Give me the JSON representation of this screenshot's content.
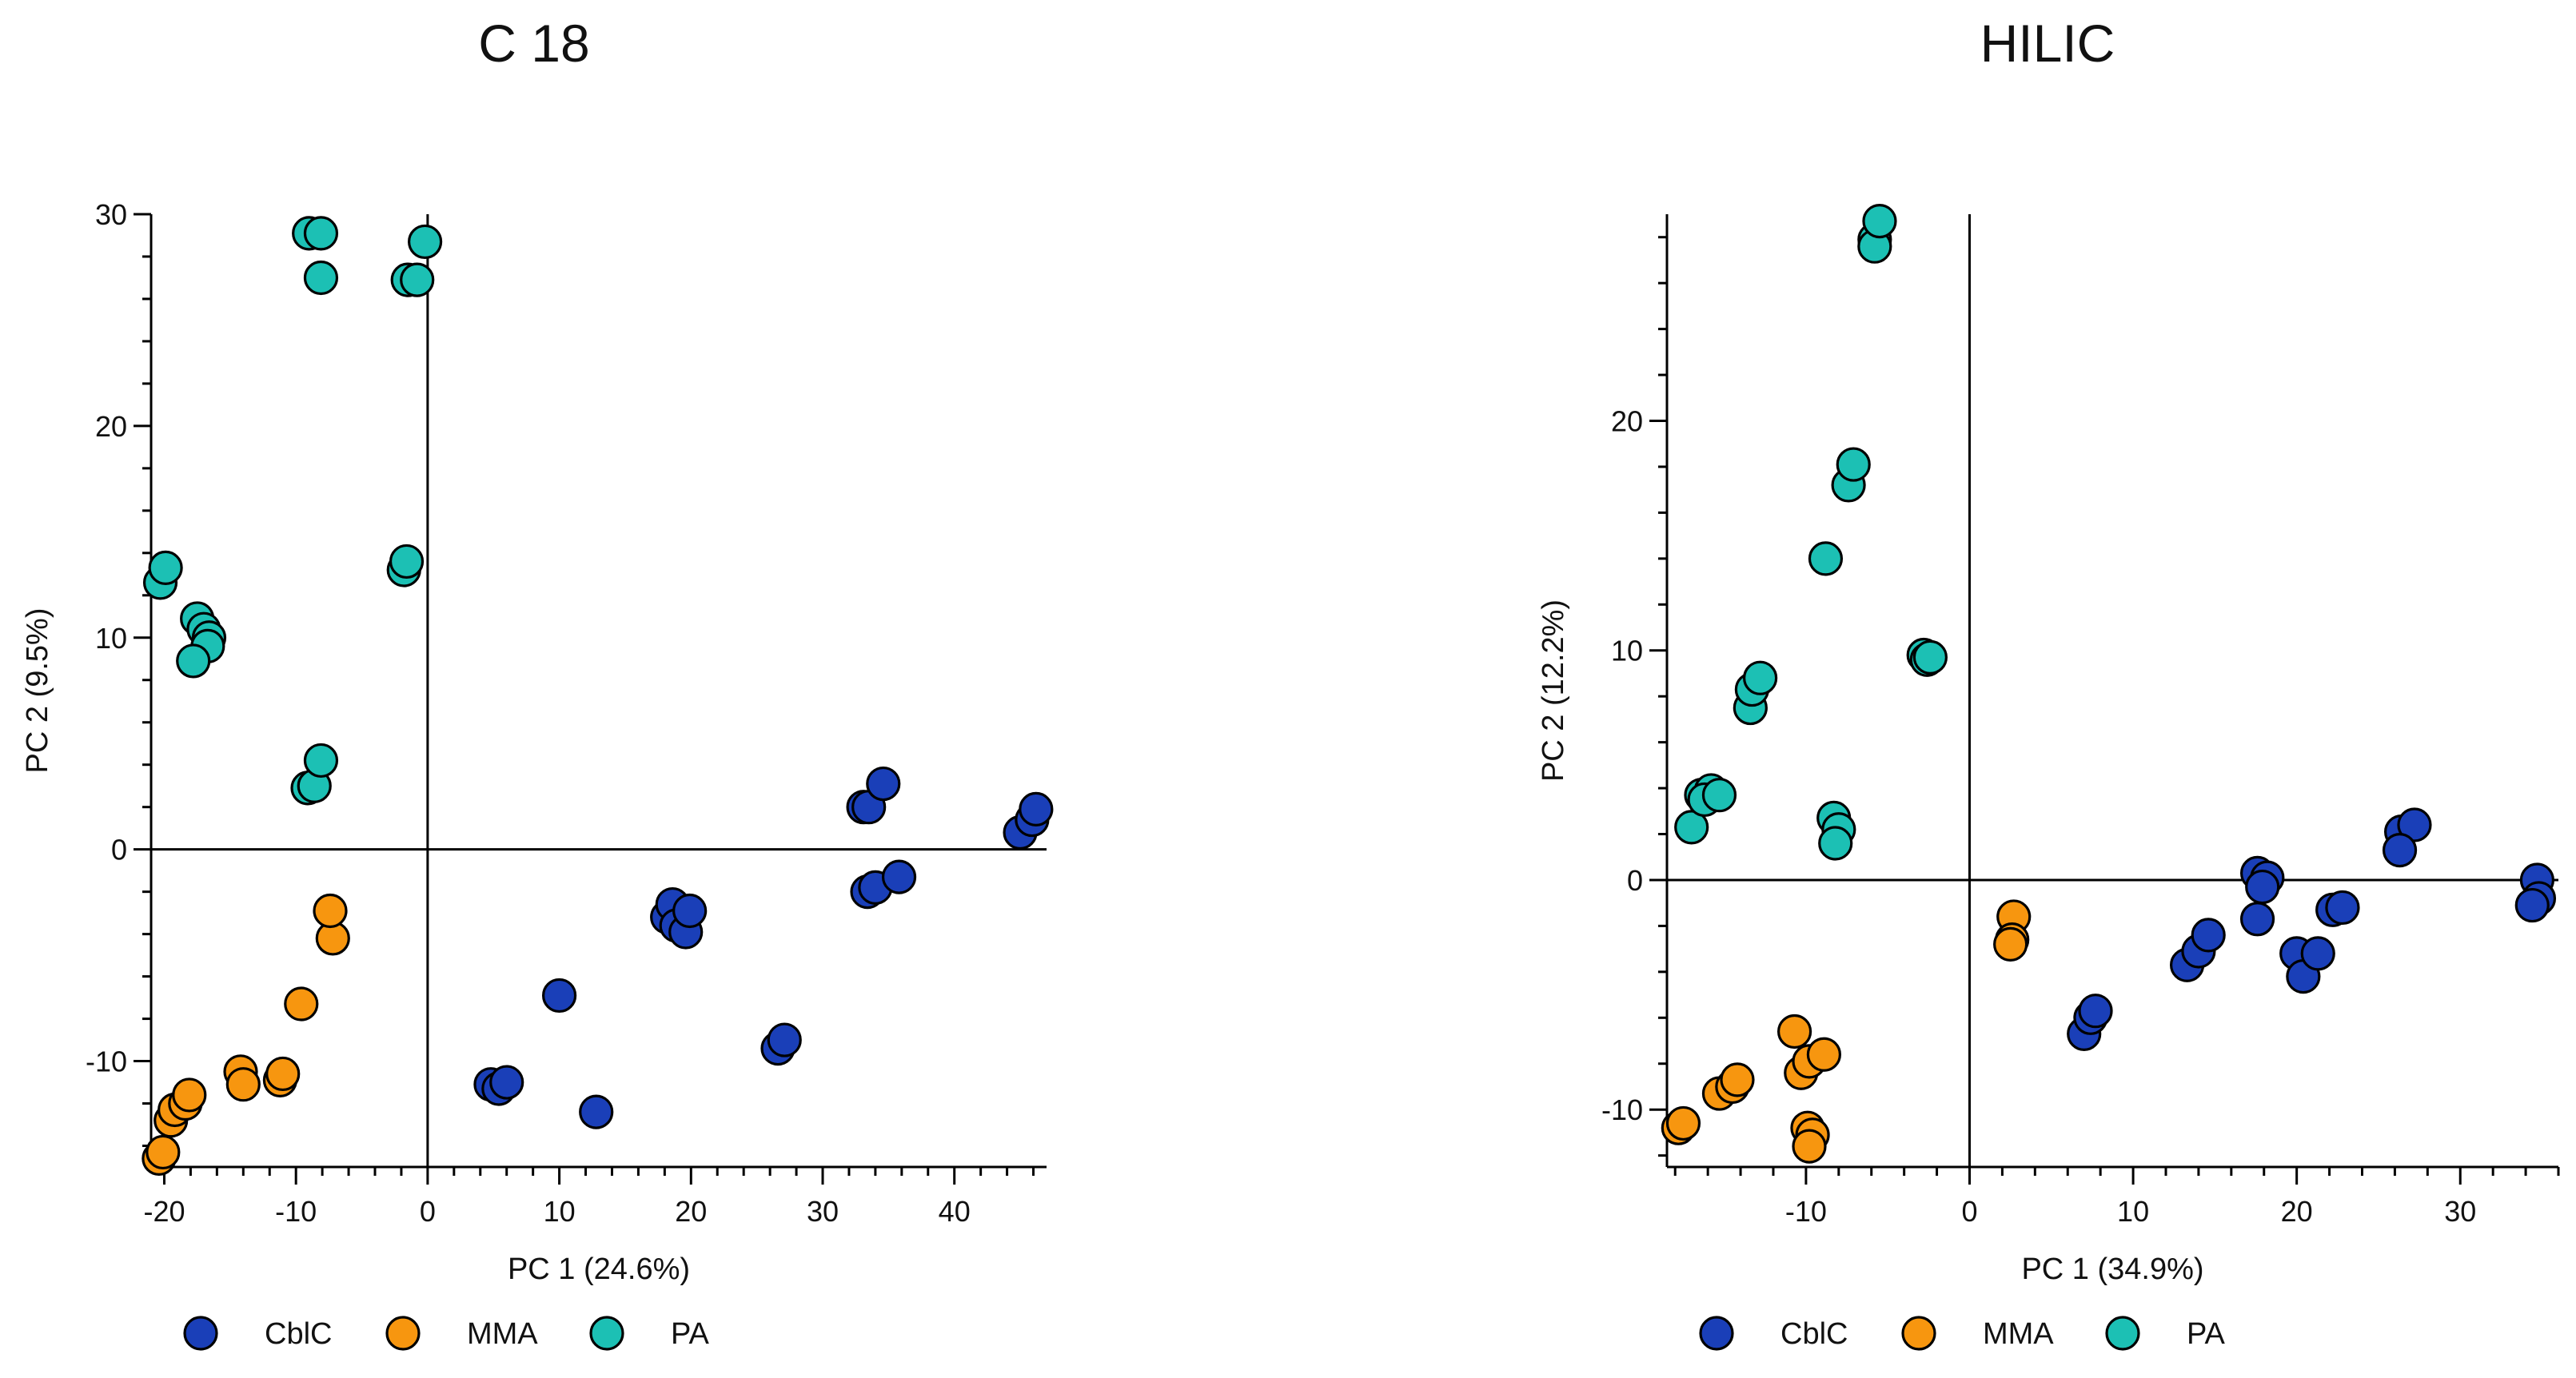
{
  "colors": {
    "CblC": "#1a3fb8",
    "MMA": "#f7960f",
    "PA": "#1cc0b4"
  },
  "chart_data": [
    {
      "type": "scatter",
      "title": "C 18",
      "xlabel": "PC 1 (24.6%)",
      "ylabel": "PC 2 (9.5%)",
      "xlim": [
        -21,
        47
      ],
      "ylim": [
        -15,
        30
      ],
      "xticks": [
        -20,
        -10,
        0,
        10,
        20,
        30,
        40
      ],
      "yticks": [
        -10,
        0,
        10,
        20,
        30
      ],
      "legend": [
        "CblC",
        "MMA",
        "PA"
      ],
      "series": [
        {
          "name": "CblC",
          "points": [
            [
              4.8,
              -11.1
            ],
            [
              5.4,
              -11.3
            ],
            [
              6.0,
              -11.0
            ],
            [
              10.0,
              -6.9
            ],
            [
              12.8,
              -12.4
            ],
            [
              18.2,
              -3.2
            ],
            [
              18.6,
              -2.6
            ],
            [
              18.9,
              -3.6
            ],
            [
              19.6,
              -3.9
            ],
            [
              19.9,
              -2.9
            ],
            [
              26.6,
              -9.4
            ],
            [
              27.1,
              -9.0
            ],
            [
              33.1,
              2.0
            ],
            [
              33.5,
              2.0
            ],
            [
              34.6,
              3.1
            ],
            [
              33.4,
              -2.0
            ],
            [
              34.0,
              -1.8
            ],
            [
              35.8,
              -1.3
            ],
            [
              45.0,
              0.8
            ],
            [
              45.9,
              1.4
            ],
            [
              46.2,
              1.9
            ]
          ]
        },
        {
          "name": "MMA",
          "points": [
            [
              -20.4,
              -14.6
            ],
            [
              -20.1,
              -14.3
            ],
            [
              -19.5,
              -12.8
            ],
            [
              -19.2,
              -12.3
            ],
            [
              -18.4,
              -12.0
            ],
            [
              -18.1,
              -11.6
            ],
            [
              -14.2,
              -10.5
            ],
            [
              -14.0,
              -11.1
            ],
            [
              -11.2,
              -10.9
            ],
            [
              -11.0,
              -10.6
            ],
            [
              -9.6,
              -7.3
            ],
            [
              -7.2,
              -4.2
            ],
            [
              -7.4,
              -2.9
            ]
          ]
        },
        {
          "name": "PA",
          "points": [
            [
              -20.3,
              12.6
            ],
            [
              -19.9,
              13.3
            ],
            [
              -17.5,
              10.9
            ],
            [
              -17.0,
              10.4
            ],
            [
              -16.6,
              10.0
            ],
            [
              -16.7,
              9.6
            ],
            [
              -17.8,
              8.9
            ],
            [
              -9.1,
              2.9
            ],
            [
              -8.6,
              3.0
            ],
            [
              -8.1,
              4.2
            ],
            [
              -9.0,
              29.1
            ],
            [
              -8.1,
              29.1
            ],
            [
              -8.1,
              27.0
            ],
            [
              -1.5,
              26.9
            ],
            [
              -0.8,
              26.9
            ],
            [
              -0.2,
              28.7
            ],
            [
              -1.8,
              13.2
            ],
            [
              -1.6,
              13.6
            ]
          ]
        }
      ]
    },
    {
      "type": "scatter",
      "title": "HILIC",
      "xlabel": "PC 1 (34.9%)",
      "ylabel": "PC 2 (12.2%)",
      "xlim": [
        -18.5,
        36
      ],
      "ylim": [
        -12.5,
        29
      ],
      "xticks": [
        -10,
        0,
        10,
        20,
        30
      ],
      "yticks": [
        -10,
        0,
        10,
        20
      ],
      "legend": [
        "CblC",
        "MMA",
        "PA"
      ],
      "series": [
        {
          "name": "CblC",
          "points": [
            [
              7.0,
              -6.7
            ],
            [
              7.4,
              -6.0
            ],
            [
              7.7,
              -5.7
            ],
            [
              13.3,
              -3.7
            ],
            [
              14.0,
              -3.1
            ],
            [
              14.6,
              -2.4
            ],
            [
              17.6,
              0.3
            ],
            [
              18.2,
              0.1
            ],
            [
              17.9,
              -0.3
            ],
            [
              17.6,
              -1.7
            ],
            [
              20.0,
              -3.2
            ],
            [
              20.4,
              -4.2
            ],
            [
              21.3,
              -3.2
            ],
            [
              22.2,
              -1.3
            ],
            [
              22.8,
              -1.2
            ],
            [
              26.4,
              2.1
            ],
            [
              27.2,
              2.4
            ],
            [
              26.3,
              1.3
            ],
            [
              34.7,
              0.0
            ],
            [
              34.8,
              -0.8
            ],
            [
              34.4,
              -1.1
            ]
          ]
        },
        {
          "name": "MMA",
          "points": [
            [
              -17.8,
              -10.8
            ],
            [
              -17.5,
              -10.6
            ],
            [
              -15.3,
              -9.3
            ],
            [
              -14.5,
              -9.0
            ],
            [
              -14.2,
              -8.7
            ],
            [
              -10.7,
              -6.6
            ],
            [
              -10.3,
              -8.4
            ],
            [
              -9.8,
              -7.9
            ],
            [
              -8.9,
              -7.6
            ],
            [
              -9.9,
              -10.8
            ],
            [
              -9.6,
              -11.1
            ],
            [
              -9.8,
              -11.6
            ],
            [
              2.7,
              -1.6
            ],
            [
              2.6,
              -2.6
            ],
            [
              2.5,
              -2.8
            ]
          ]
        },
        {
          "name": "PA",
          "points": [
            [
              -17.0,
              2.3
            ],
            [
              -16.4,
              3.7
            ],
            [
              -15.8,
              3.9
            ],
            [
              -16.2,
              3.5
            ],
            [
              -15.3,
              3.7
            ],
            [
              -13.4,
              7.5
            ],
            [
              -13.3,
              8.3
            ],
            [
              -12.8,
              8.8
            ],
            [
              -8.8,
              14.0
            ],
            [
              -8.3,
              2.7
            ],
            [
              -8.0,
              2.2
            ],
            [
              -8.2,
              1.6
            ],
            [
              -7.4,
              17.2
            ],
            [
              -7.1,
              18.1
            ],
            [
              -5.8,
              27.9
            ],
            [
              -5.8,
              27.6
            ],
            [
              -5.5,
              28.7
            ],
            [
              -2.8,
              9.8
            ],
            [
              -2.6,
              9.6
            ],
            [
              -2.4,
              9.7
            ]
          ]
        }
      ]
    }
  ]
}
